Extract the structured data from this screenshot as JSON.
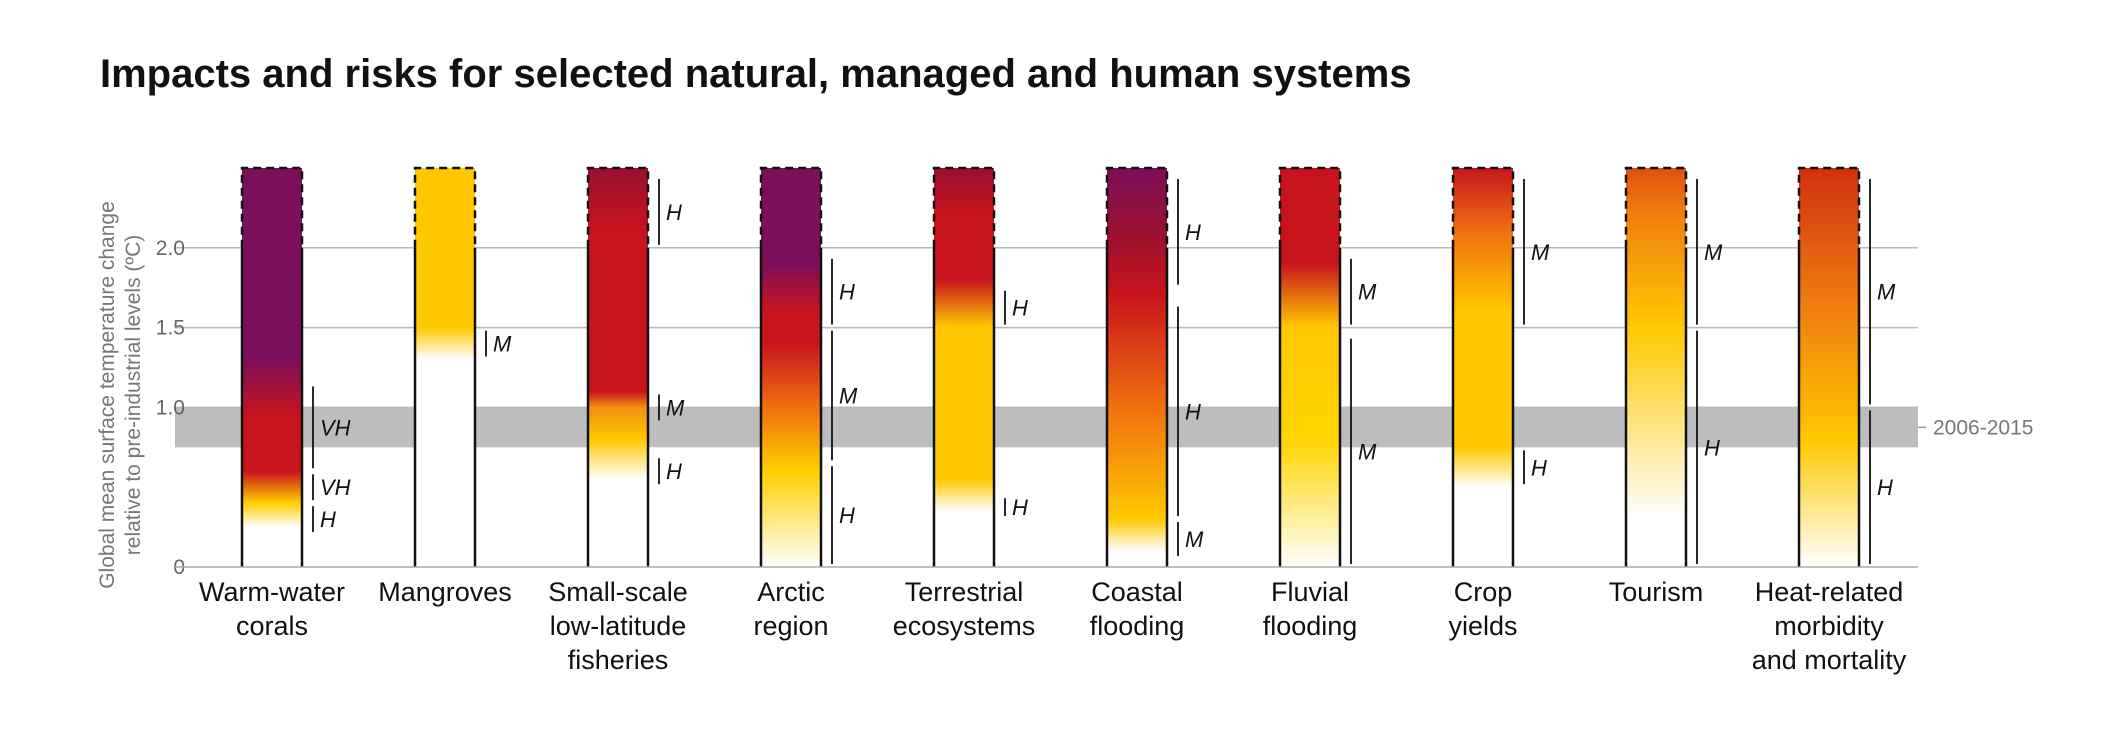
{
  "title": "Impacts and risks for selected natural, managed and human systems",
  "chart_data": {
    "type": "heatmap",
    "title": "Impacts and risks for selected natural, managed and human systems",
    "ylabel": "Global mean surface temperature change relative to pre-industrial levels (ºC)",
    "ylim": [
      0,
      2.5
    ],
    "yticks": [
      "0",
      "1.0",
      "1.5",
      "2.0"
    ],
    "gridlines": [
      1.0,
      1.5,
      2.0
    ],
    "period_band": {
      "label": "2006-2015",
      "from": 0.75,
      "to": 1.0
    },
    "colors": {
      "undetectable": "#ffffff",
      "moderate": "#ffc800",
      "high": "#c8141c",
      "very_high": "#7a0f5a",
      "band": "#bdbdbd"
    },
    "systems": [
      {
        "label_lines": [
          "Warm-water",
          "corals"
        ],
        "stops": [
          [
            0.25,
            "#ffffff"
          ],
          [
            0.4,
            "#ffd000"
          ],
          [
            0.6,
            "#c8141c"
          ],
          [
            0.95,
            "#c8141c"
          ],
          [
            1.3,
            "#7a0f5a"
          ],
          [
            2.5,
            "#7a0f5a"
          ]
        ],
        "confidence": [
          {
            "from": 0.2,
            "to": 0.4,
            "level": "H"
          },
          {
            "from": 0.4,
            "to": 0.6,
            "level": "VH"
          },
          {
            "from": 0.6,
            "to": 1.15,
            "level": "VH"
          }
        ]
      },
      {
        "label_lines": [
          "Mangroves"
        ],
        "stops": [
          [
            1.3,
            "#ffffff"
          ],
          [
            1.5,
            "#ffc800"
          ],
          [
            2.5,
            "#ffc800"
          ]
        ],
        "confidence": [
          {
            "from": 1.3,
            "to": 1.5,
            "level": "M"
          }
        ]
      },
      {
        "label_lines": [
          "Small-scale",
          "low-latitude",
          "fisheries"
        ],
        "stops": [
          [
            0.55,
            "#ffffff"
          ],
          [
            0.8,
            "#ffc800"
          ],
          [
            1.0,
            "#f09010"
          ],
          [
            1.1,
            "#c8141c"
          ],
          [
            2.1,
            "#c8141c"
          ],
          [
            2.5,
            "#9a1030"
          ]
        ],
        "confidence": [
          {
            "from": 0.5,
            "to": 0.7,
            "level": "H"
          },
          {
            "from": 0.9,
            "to": 1.1,
            "level": "M"
          },
          {
            "from": 2.0,
            "to": 2.45,
            "level": "H"
          }
        ]
      },
      {
        "label_lines": [
          "Arctic",
          "region"
        ],
        "stops": [
          [
            0.0,
            "#ffffff"
          ],
          [
            0.6,
            "#ffd000"
          ],
          [
            1.0,
            "#f07010"
          ],
          [
            1.4,
            "#c8141c"
          ],
          [
            1.6,
            "#c8141c"
          ],
          [
            1.9,
            "#7a0f5a"
          ],
          [
            2.5,
            "#7a0f5a"
          ]
        ],
        "confidence": [
          {
            "from": 0.0,
            "to": 0.65,
            "level": "H"
          },
          {
            "from": 0.65,
            "to": 1.5,
            "level": "M"
          },
          {
            "from": 1.5,
            "to": 1.95,
            "level": "H"
          }
        ]
      },
      {
        "label_lines": [
          "Terrestrial",
          "ecosystems"
        ],
        "stops": [
          [
            0.35,
            "#ffffff"
          ],
          [
            0.55,
            "#ffc800"
          ],
          [
            1.5,
            "#ffc800"
          ],
          [
            1.8,
            "#c8141c"
          ],
          [
            2.2,
            "#c8141c"
          ],
          [
            2.5,
            "#9a1030"
          ]
        ],
        "confidence": [
          {
            "from": 0.3,
            "to": 0.45,
            "level": "H"
          },
          {
            "from": 1.5,
            "to": 1.75,
            "level": "H"
          }
        ]
      },
      {
        "label_lines": [
          "Coastal",
          "flooding"
        ],
        "stops": [
          [
            0.1,
            "#ffffff"
          ],
          [
            0.3,
            "#ffc800"
          ],
          [
            1.0,
            "#f07010"
          ],
          [
            1.7,
            "#c8141c"
          ],
          [
            2.1,
            "#9a1030"
          ],
          [
            2.5,
            "#7a0f5a"
          ]
        ],
        "confidence": [
          {
            "from": 0.05,
            "to": 0.3,
            "level": "M"
          },
          {
            "from": 0.3,
            "to": 1.65,
            "level": "H"
          },
          {
            "from": 1.75,
            "to": 2.45,
            "level": "H"
          }
        ]
      },
      {
        "label_lines": [
          "Fluvial",
          "flooding"
        ],
        "stops": [
          [
            0.0,
            "#ffffff"
          ],
          [
            0.8,
            "#ffd400"
          ],
          [
            1.5,
            "#ffc800"
          ],
          [
            1.9,
            "#c8141c"
          ],
          [
            2.5,
            "#c8141c"
          ]
        ],
        "confidence": [
          {
            "from": 0.0,
            "to": 1.45,
            "level": "M"
          },
          {
            "from": 1.5,
            "to": 1.95,
            "level": "M"
          }
        ]
      },
      {
        "label_lines": [
          "Crop",
          "yields"
        ],
        "stops": [
          [
            0.5,
            "#ffffff"
          ],
          [
            0.75,
            "#ffc800"
          ],
          [
            1.6,
            "#ffc800"
          ],
          [
            2.1,
            "#f07010"
          ],
          [
            2.5,
            "#c8141c"
          ]
        ],
        "confidence": [
          {
            "from": 0.5,
            "to": 0.75,
            "level": "H"
          },
          {
            "from": 1.5,
            "to": 2.45,
            "level": "M"
          }
        ]
      },
      {
        "label_lines": [
          "Tourism"
        ],
        "stops": [
          [
            0.3,
            "#ffffff"
          ],
          [
            1.5,
            "#ffc800"
          ],
          [
            2.2,
            "#f08010"
          ],
          [
            2.5,
            "#e05010"
          ]
        ],
        "confidence": [
          {
            "from": 0.0,
            "to": 1.5,
            "level": "H"
          },
          {
            "from": 1.5,
            "to": 2.45,
            "level": "M"
          }
        ]
      },
      {
        "label_lines": [
          "Heat-related",
          "morbidity",
          "and mortality"
        ],
        "stops": [
          [
            0.0,
            "#ffffff"
          ],
          [
            0.8,
            "#ffc800"
          ],
          [
            1.6,
            "#f08010"
          ],
          [
            2.5,
            "#d03010"
          ]
        ],
        "confidence": [
          {
            "from": 0.0,
            "to": 1.0,
            "level": "H"
          },
          {
            "from": 1.0,
            "to": 2.45,
            "level": "M"
          }
        ]
      }
    ]
  }
}
